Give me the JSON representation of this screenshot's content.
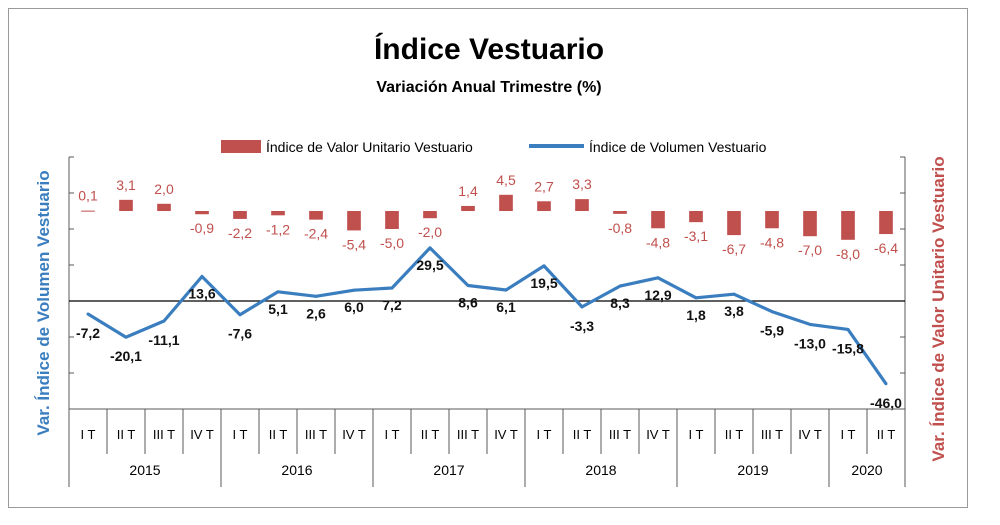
{
  "chart_data": {
    "type": "bar+line",
    "title": "Índice Vestuario",
    "subtitle": "Variación Anual Trimestre  (%)",
    "categories": [
      "I T",
      "II T",
      "III T",
      "IV T",
      "I T",
      "II T",
      "III T",
      "IV T",
      "I T",
      "II T",
      "III T",
      "IV T",
      "I T",
      "II T",
      "III T",
      "IV T",
      "I T",
      "II T",
      "III T",
      "IV T",
      "I T",
      "II T"
    ],
    "years": [
      {
        "label": "2015",
        "count": 4
      },
      {
        "label": "2016",
        "count": 4
      },
      {
        "label": "2017",
        "count": 4
      },
      {
        "label": "2018",
        "count": 4
      },
      {
        "label": "2019",
        "count": 4
      },
      {
        "label": "2020",
        "count": 2
      }
    ],
    "series": [
      {
        "name": "Índice de Valor Unitario Vestuario",
        "kind": "bar",
        "axis": "right",
        "color": "#c0504d",
        "values": [
          0.1,
          3.1,
          2.0,
          -0.9,
          -2.2,
          -1.2,
          -2.4,
          -5.4,
          -5.0,
          -2.0,
          1.4,
          4.5,
          2.7,
          3.3,
          -0.8,
          -4.8,
          -3.1,
          -6.7,
          -4.8,
          -7.0,
          -8.0,
          -6.4
        ],
        "labels": [
          "0,1",
          "3,1",
          "2,0",
          "-0,9",
          "-2,2",
          "-1,2",
          "-2,4",
          "-5,4",
          "-5,0",
          "-2,0",
          "1,4",
          "4,5",
          "2,7",
          "3,3",
          "-0,8",
          "-4,8",
          "-3,1",
          "-6,7",
          "-4,8",
          "-7,0",
          "-8,0",
          "-6,4"
        ]
      },
      {
        "name": "Índice de Volumen Vestuario",
        "kind": "line",
        "axis": "left",
        "color": "#3a7ebf",
        "values": [
          -7.2,
          -20.1,
          -11.1,
          13.6,
          -7.6,
          5.1,
          2.6,
          6.0,
          7.2,
          29.5,
          8.6,
          6.1,
          19.5,
          -3.3,
          8.3,
          12.9,
          1.8,
          3.8,
          -5.9,
          -13.0,
          -15.8,
          -46.0
        ],
        "labels": [
          "-7,2",
          "-20,1",
          "-11,1",
          "13,6",
          "-7,6",
          "5,1",
          "2,6",
          "6,0",
          "7,2",
          "29,5",
          "8,6",
          "6,1",
          "19,5",
          "-3,3",
          "8,3",
          "12,9",
          "1,8",
          "3,8",
          "-5,9",
          "-13,0",
          "-15,8",
          "-46,0"
        ]
      }
    ],
    "ylabel_left": "Var. Índice de Volumen Vestuario",
    "ylabel_right": "Var. Índice de Valor Unitario Vestuario",
    "ylim_left": [
      -60,
      80
    ],
    "ylim_right": [
      -55,
      15
    ],
    "legend_position": "top",
    "grid": false
  }
}
